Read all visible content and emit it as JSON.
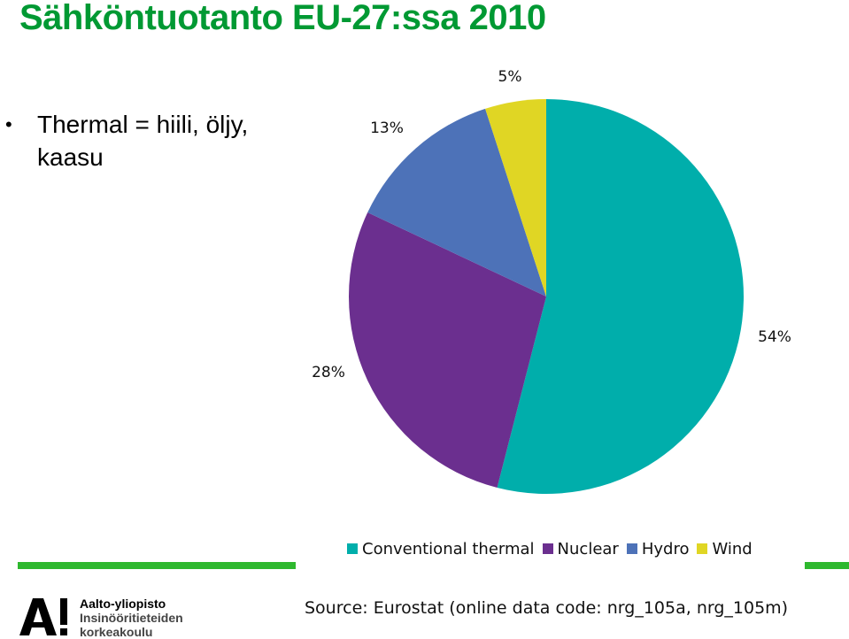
{
  "title": "Sähköntuotanto EU-27:ssa 2010",
  "bullets": [
    "Thermal = hiili, öljy,\nkaasu"
  ],
  "colors": {
    "title": "#009933",
    "accent_bar": "#2eb82e"
  },
  "chart_data": {
    "type": "pie",
    "categories": [
      "Conventional thermal",
      "Nuclear",
      "Hydro",
      "Wind"
    ],
    "values": [
      54,
      28,
      13,
      5
    ],
    "labels": [
      "54%",
      "28%",
      "13%",
      "5%"
    ],
    "colors": [
      "#00aeab",
      "#6b2f8f",
      "#4d72b8",
      "#e0d624"
    ],
    "legend_position": "bottom",
    "start_angle_deg": 0,
    "direction": "clockwise"
  },
  "legend": {
    "items": [
      {
        "label": "Conventional thermal",
        "color": "#00aeab"
      },
      {
        "label": "Nuclear",
        "color": "#6b2f8f"
      },
      {
        "label": "Hydro",
        "color": "#4d72b8"
      },
      {
        "label": "Wind",
        "color": "#e0d624"
      }
    ]
  },
  "logo": {
    "icon": "aalto-a-logo",
    "line1": "Aalto-yliopisto",
    "line2": "Insinööritieteiden",
    "line3": "korkeakoulu"
  },
  "source": "Source: Eurostat (online data code: nrg_105a, nrg_105m)"
}
